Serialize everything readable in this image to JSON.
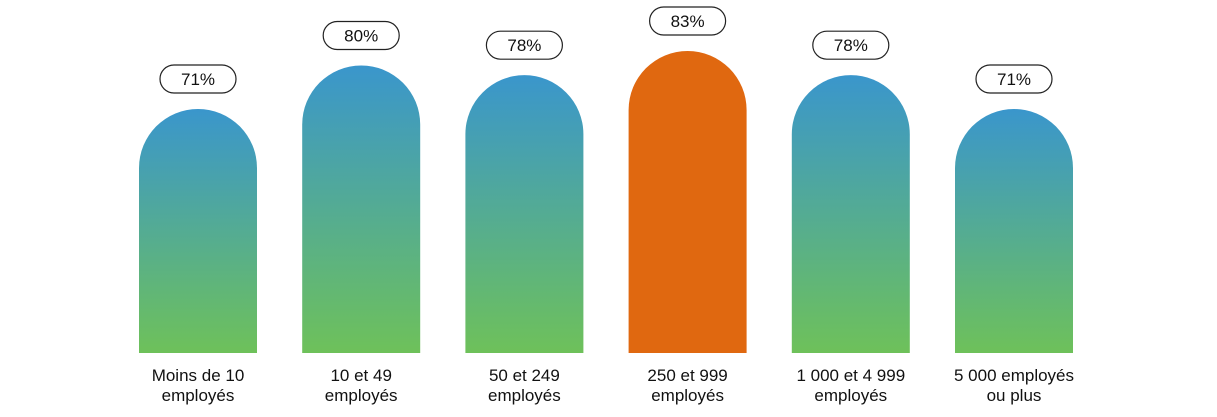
{
  "chart_data": {
    "type": "bar",
    "categories": [
      [
        "Moins de 10",
        "employés"
      ],
      [
        "10 et 49",
        "employés"
      ],
      [
        "50 et 249",
        "employés"
      ],
      [
        "250 et 999",
        "employés"
      ],
      [
        "1 000 et 4 999",
        "employés"
      ],
      [
        "5 000 employés",
        "ou plus"
      ]
    ],
    "values": [
      71,
      80,
      78,
      83,
      78,
      71
    ],
    "value_labels": [
      "71%",
      "80%",
      "78%",
      "83%",
      "78%",
      "71%"
    ],
    "highlight_index": 3,
    "ylim": [
      0,
      100
    ],
    "grid": false,
    "colors": {
      "gradient_top": "#3a96cc",
      "gradient_bottom": "#6ec15a",
      "highlight": "#e06810",
      "label_border": "#222222",
      "text": "#111111"
    }
  }
}
